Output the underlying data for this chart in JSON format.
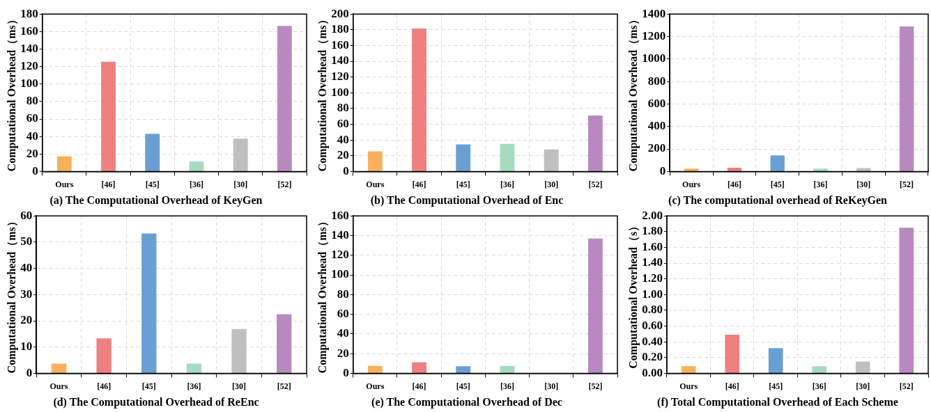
{
  "chart_data": [
    {
      "type": "bar",
      "title": "(a) The Computational Overhead of KeyGen",
      "ylabel": "Computational Overhead（ms）",
      "categories": [
        "Ours",
        "[46]",
        "[45]",
        "[36]",
        "[30]",
        "[52]"
      ],
      "values": [
        17.5,
        125.5,
        43,
        11.5,
        37.5,
        166.5
      ],
      "colors": [
        "#f9b05a",
        "#ef8080",
        "#6a9fd4",
        "#a5dbbe",
        "#bfbfbf",
        "#b88ac0"
      ],
      "ylim": [
        0,
        180
      ],
      "yticks": [
        0,
        20,
        40,
        60,
        80,
        100,
        120,
        140,
        160,
        180
      ],
      "grid": true
    },
    {
      "type": "bar",
      "title": "(b) The Computational Overhead of Enc",
      "ylabel": "Computational Overhead（ms）",
      "categories": [
        "Ours",
        "[46]",
        "[45]",
        "[36]",
        "[30]",
        "[52]"
      ],
      "values": [
        25.5,
        181.5,
        34.5,
        35,
        28,
        71
      ],
      "colors": [
        "#f9b05a",
        "#ef8080",
        "#6a9fd4",
        "#a5dbbe",
        "#bfbfbf",
        "#b88ac0"
      ],
      "ylim": [
        0,
        200
      ],
      "yticks": [
        0,
        20,
        40,
        60,
        80,
        100,
        120,
        140,
        160,
        180,
        200
      ],
      "grid": true
    },
    {
      "type": "bar",
      "title": "(c) The computational overhead of ReKeyGen",
      "ylabel": "Computational Overhead（ms）",
      "categories": [
        "Ours",
        "[46]",
        "[45]",
        "[36]",
        "[30]",
        "[52]"
      ],
      "values": [
        25,
        33,
        143,
        25,
        30,
        1290
      ],
      "colors": [
        "#f9b05a",
        "#ef8080",
        "#6a9fd4",
        "#a5dbbe",
        "#bfbfbf",
        "#b88ac0"
      ],
      "ylim": [
        0,
        1400
      ],
      "yticks": [
        0,
        200,
        400,
        600,
        800,
        1000,
        1200,
        1400
      ],
      "grid": true
    },
    {
      "type": "bar",
      "title": "(d) The Computational Overhead of ReEnc",
      "ylabel": "Computational Overhead（ms）",
      "categories": [
        "Ours",
        "[46]",
        "[45]",
        "[36]",
        "[30]",
        "[52]"
      ],
      "values": [
        3.7,
        13.3,
        53.3,
        3.7,
        16.9,
        22.5
      ],
      "colors": [
        "#f9b05a",
        "#ef8080",
        "#6a9fd4",
        "#a5dbbe",
        "#bfbfbf",
        "#b88ac0"
      ],
      "ylim": [
        0,
        60
      ],
      "yticks": [
        0,
        10,
        20,
        30,
        40,
        50,
        60
      ],
      "grid": true
    },
    {
      "type": "bar",
      "title": "(e) The Computational Overhead of Dec",
      "ylabel": "Computational Overhead（ms）",
      "categories": [
        "Ours",
        "[46]",
        "[45]",
        "[36]",
        "[30]",
        "[52]"
      ],
      "values": [
        7.5,
        11.3,
        7.2,
        7.5,
        0,
        137
      ],
      "colors": [
        "#f9b05a",
        "#ef8080",
        "#6a9fd4",
        "#a5dbbe",
        "#bfbfbf",
        "#b88ac0"
      ],
      "ylim": [
        0,
        160
      ],
      "yticks": [
        0,
        20,
        40,
        60,
        80,
        100,
        120,
        140,
        160
      ],
      "grid": true
    },
    {
      "type": "bar",
      "title": "(f) Total Computational Overhead of Each Scheme",
      "ylabel": "Computational Overhead（s）",
      "categories": [
        "Ours",
        "[46]",
        "[45]",
        "[36]",
        "[30]",
        "[52]"
      ],
      "values": [
        0.09,
        0.49,
        0.32,
        0.09,
        0.15,
        1.85
      ],
      "colors": [
        "#f9b05a",
        "#ef8080",
        "#6a9fd4",
        "#a5dbbe",
        "#bfbfbf",
        "#b88ac0"
      ],
      "ylim": [
        0,
        2
      ],
      "yticks": [
        {
          "value": 0,
          "label": "0.00"
        },
        {
          "value": 0.2,
          "label": "0.20"
        },
        {
          "value": 0.4,
          "label": "0.40"
        },
        {
          "value": 0.6,
          "label": "0.60"
        },
        {
          "value": 0.8,
          "label": "0.80"
        },
        {
          "value": 1,
          "label": "1.00"
        },
        {
          "value": 1.2,
          "label": "1.20"
        },
        {
          "value": 1.4,
          "label": "1.40"
        },
        {
          "value": 1.6,
          "label": "1.60"
        },
        {
          "value": 1.8,
          "label": "1.80"
        },
        {
          "value": 2,
          "label": "2.00"
        }
      ],
      "grid": true
    }
  ]
}
